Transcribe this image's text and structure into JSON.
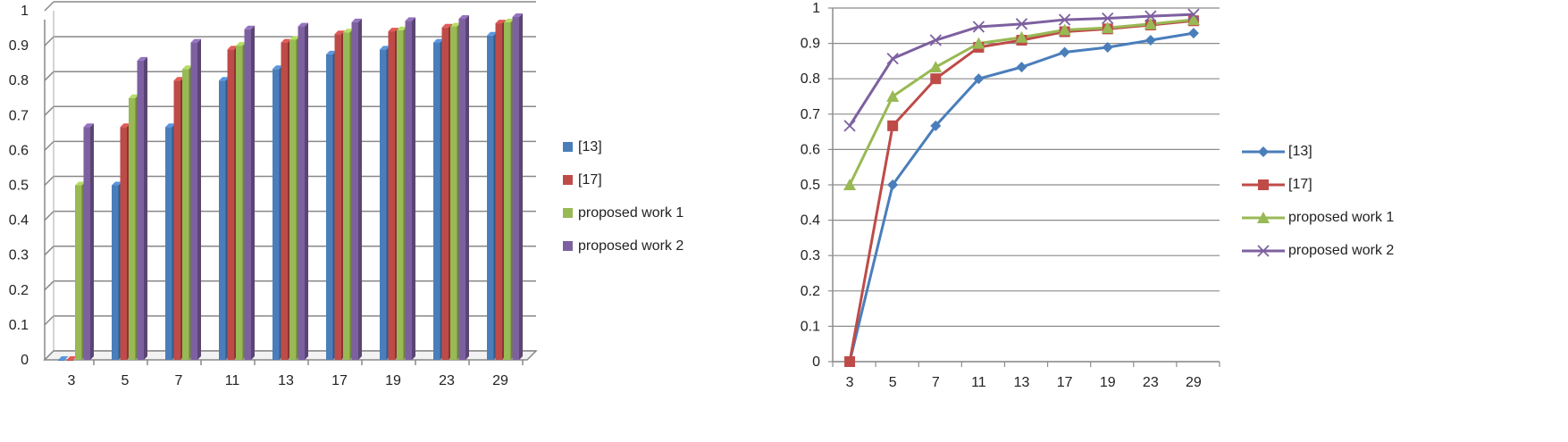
{
  "chart_data": [
    {
      "type": "bar",
      "categories": [
        "3",
        "5",
        "7",
        "11",
        "13",
        "17",
        "19",
        "23",
        "29"
      ],
      "series": [
        {
          "name": "[13]",
          "color": "#4a7ebb",
          "values": [
            0,
            0.5,
            0.667,
            0.8,
            0.833,
            0.875,
            0.889,
            0.909,
            0.929
          ]
        },
        {
          "name": "[17]",
          "color": "#be4b48",
          "values": [
            0,
            0.667,
            0.8,
            0.889,
            0.909,
            0.933,
            0.941,
            0.952,
            0.964
          ]
        },
        {
          "name": "proposed work 1",
          "color": "#98b954",
          "values": [
            0.5,
            0.75,
            0.833,
            0.9,
            0.917,
            0.938,
            0.944,
            0.955,
            0.967
          ]
        },
        {
          "name": "proposed work 2",
          "color": "#7d60a0",
          "values": [
            0.667,
            0.857,
            0.909,
            0.947,
            0.955,
            0.967,
            0.971,
            0.977,
            0.982
          ]
        }
      ],
      "yticks": [
        "0",
        "0.1",
        "0.2",
        "0.3",
        "0.4",
        "0.5",
        "0.6",
        "0.7",
        "0.8",
        "0.9",
        "1"
      ],
      "ylim": [
        0,
        1
      ],
      "grid": true,
      "legend": "right"
    },
    {
      "type": "line",
      "categories": [
        "3",
        "5",
        "7",
        "11",
        "13",
        "17",
        "19",
        "23",
        "29"
      ],
      "series": [
        {
          "name": "[13]",
          "color": "#4a7ebb",
          "marker": "diamond",
          "values": [
            0,
            0.5,
            0.667,
            0.8,
            0.833,
            0.875,
            0.889,
            0.909,
            0.929
          ]
        },
        {
          "name": "[17]",
          "color": "#be4b48",
          "marker": "square",
          "values": [
            0,
            0.667,
            0.8,
            0.889,
            0.909,
            0.933,
            0.941,
            0.952,
            0.964
          ]
        },
        {
          "name": "proposed work 1",
          "color": "#98b954",
          "marker": "triangle",
          "values": [
            0.5,
            0.75,
            0.833,
            0.9,
            0.917,
            0.938,
            0.944,
            0.955,
            0.967
          ]
        },
        {
          "name": "proposed work 2",
          "color": "#7d60a0",
          "marker": "x",
          "values": [
            0.667,
            0.857,
            0.909,
            0.947,
            0.955,
            0.967,
            0.971,
            0.977,
            0.982
          ]
        }
      ],
      "yticks": [
        "0",
        "0.1",
        "0.2",
        "0.3",
        "0.4",
        "0.5",
        "0.6",
        "0.7",
        "0.8",
        "0.9",
        "1"
      ],
      "ylim": [
        0,
        1
      ],
      "grid": true,
      "legend": "right"
    }
  ]
}
